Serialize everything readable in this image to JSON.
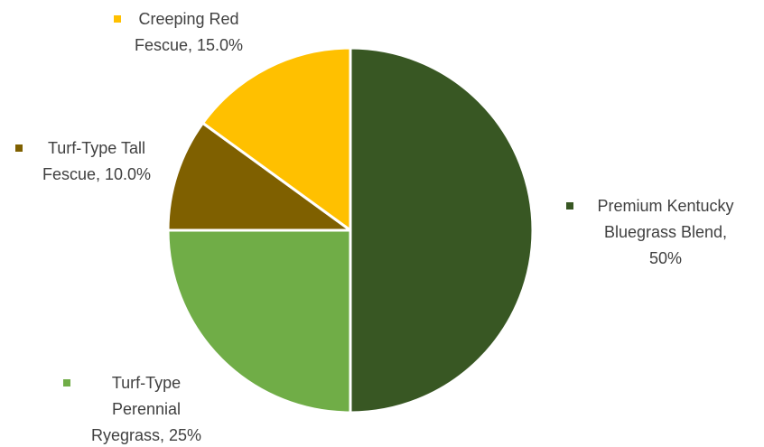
{
  "chart_data": {
    "type": "pie",
    "title": "",
    "slices": [
      {
        "name": "Premium Kentucky Bluegrass Blend",
        "value": 50,
        "label_lines": [
          "Premium Kentucky",
          "Bluegrass Blend,",
          "50%"
        ],
        "color": "#385723"
      },
      {
        "name": "Turf-Type Perennial Ryegrass",
        "value": 25,
        "label_lines": [
          "Turf-Type",
          "Perennial",
          "Ryegrass, 25%"
        ],
        "color": "#70AD47"
      },
      {
        "name": "Turf-Type Tall Fescue",
        "value": 10,
        "label_lines": [
          "Turf-Type Tall",
          "Fescue, 10.0%"
        ],
        "color": "#7F6000"
      },
      {
        "name": "Creeping Red Fescue",
        "value": 15,
        "label_lines": [
          "Creeping Red",
          "Fescue, 15.0%"
        ],
        "color": "#FFC000"
      }
    ],
    "start_angle_deg": 0,
    "direction": "clockwise",
    "legend": "none",
    "label_text_color": "#404040",
    "slice_border_color": "#FFFFFF"
  }
}
